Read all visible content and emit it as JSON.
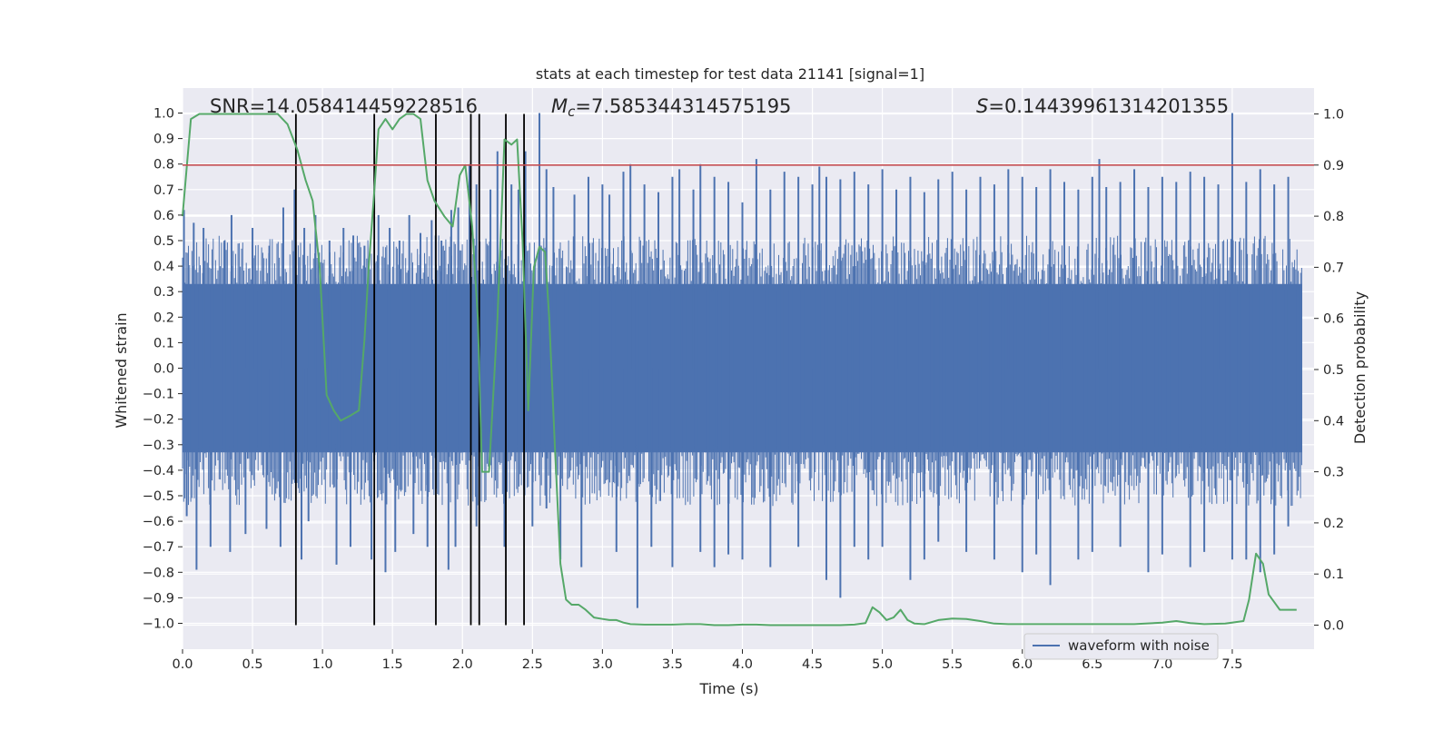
{
  "chart_data": {
    "type": "line",
    "title": "stats at each timestep for test data 21141 [signal=1]",
    "xlabel": "Time (s)",
    "ylabel": "Whitened strain",
    "y2label": "Detection probability",
    "xlim": [
      0.0,
      8.0
    ],
    "ylim": [
      -1.05,
      1.05
    ],
    "y2lim": [
      -0.025,
      1.035
    ],
    "x_ticks": [
      0.0,
      0.5,
      1.0,
      1.5,
      2.0,
      2.5,
      3.0,
      3.5,
      4.0,
      4.5,
      5.0,
      5.5,
      6.0,
      6.5,
      7.0,
      7.5
    ],
    "x_tick_labels": [
      "0.0",
      "0.5",
      "1.0",
      "1.5",
      "2.0",
      "2.5",
      "3.0",
      "3.5",
      "4.0",
      "4.5",
      "5.0",
      "5.5",
      "6.0",
      "6.5",
      "7.0",
      "7.5"
    ],
    "y_ticks": [
      -1.0,
      -0.9,
      -0.8,
      -0.7,
      -0.6,
      -0.5,
      -0.4,
      -0.3,
      -0.2,
      -0.1,
      0.0,
      0.1,
      0.2,
      0.3,
      0.4,
      0.5,
      0.6,
      0.7,
      0.8,
      0.9,
      1.0
    ],
    "y_tick_labels": [
      "−1.0",
      "−0.9",
      "−0.8",
      "−0.7",
      "−0.6",
      "−0.5",
      "−0.4",
      "−0.3",
      "−0.2",
      "−0.1",
      "0.0",
      "0.1",
      "0.2",
      "0.3",
      "0.4",
      "0.5",
      "0.6",
      "0.7",
      "0.8",
      "0.9",
      "1.0"
    ],
    "y2_ticks": [
      0.0,
      0.1,
      0.2,
      0.3,
      0.4,
      0.5,
      0.6,
      0.7,
      0.8,
      0.9,
      1.0
    ],
    "y2_tick_labels": [
      "0.0",
      "0.1",
      "0.2",
      "0.3",
      "0.4",
      "0.5",
      "0.6",
      "0.7",
      "0.8",
      "0.9",
      "1.0"
    ],
    "annotations": {
      "snr": "SNR=14.058414459228516",
      "mc_symbol": "M",
      "mc_sub": "c",
      "mc_value": "=7.585344314575195",
      "s_symbol": "S",
      "s_value": "=0.14439961314201355"
    },
    "legend": {
      "label": "waveform with noise",
      "location": "lower-right-center"
    },
    "colors": {
      "waveform": "#4c72b0",
      "probability": "#55a868",
      "threshold": "#c44e52",
      "vlines": "#000000",
      "background": "#eaeaf2",
      "grid": "#ffffff"
    },
    "waveform": {
      "name": "waveform with noise",
      "band_upper": 0.33,
      "band_lower": -0.33,
      "peaks_x": [
        0.01,
        0.08,
        0.15,
        0.3,
        0.35,
        0.5,
        0.62,
        0.72,
        0.8,
        0.87,
        0.95,
        1.05,
        1.15,
        1.22,
        1.3,
        1.4,
        1.48,
        1.55,
        1.62,
        1.7,
        1.78,
        1.85,
        1.92,
        1.97,
        2.05,
        2.1,
        2.2,
        2.25,
        2.35,
        2.4,
        2.45,
        2.55,
        2.6,
        2.65,
        2.8,
        2.9,
        3.0,
        3.05,
        3.15,
        3.2,
        3.3,
        3.4,
        3.5,
        3.55,
        3.65,
        3.7,
        3.8,
        3.9,
        4.0,
        4.1,
        4.2,
        4.3,
        4.4,
        4.5,
        4.55,
        4.6,
        4.7,
        4.8,
        4.9,
        5.0,
        5.1,
        5.2,
        5.3,
        5.4,
        5.5,
        5.6,
        5.7,
        5.8,
        5.9,
        6.0,
        6.1,
        6.2,
        6.3,
        6.4,
        6.5,
        6.55,
        6.6,
        6.7,
        6.8,
        6.9,
        7.0,
        7.1,
        7.2,
        7.3,
        7.4,
        7.5,
        7.6,
        7.7,
        7.8,
        7.9
      ],
      "peaks_y": [
        0.62,
        0.57,
        0.55,
        0.5,
        0.6,
        0.55,
        0.48,
        0.63,
        0.7,
        0.55,
        0.6,
        0.5,
        0.55,
        0.52,
        0.48,
        0.6,
        0.55,
        0.5,
        0.6,
        0.53,
        0.58,
        0.5,
        0.62,
        0.63,
        0.8,
        0.72,
        0.7,
        0.85,
        0.72,
        0.7,
        0.85,
        1.0,
        0.78,
        0.71,
        0.68,
        0.75,
        0.72,
        0.68,
        0.77,
        0.8,
        0.72,
        0.69,
        0.75,
        0.78,
        0.7,
        0.8,
        0.75,
        0.73,
        0.65,
        0.82,
        0.7,
        0.77,
        0.75,
        0.72,
        0.79,
        0.75,
        0.74,
        0.77,
        0.72,
        0.78,
        0.7,
        0.75,
        0.69,
        0.74,
        0.77,
        0.7,
        0.75,
        0.72,
        0.78,
        0.75,
        0.71,
        0.78,
        0.73,
        0.7,
        0.75,
        0.82,
        0.71,
        0.73,
        0.78,
        0.71,
        0.75,
        0.73,
        0.77,
        0.75,
        0.72,
        1.0,
        0.73,
        0.78,
        0.72,
        0.75
      ],
      "troughs_x": [
        0.03,
        0.1,
        0.2,
        0.34,
        0.45,
        0.6,
        0.7,
        0.85,
        0.9,
        1.1,
        1.2,
        1.35,
        1.45,
        1.52,
        1.65,
        1.75,
        1.9,
        1.95,
        2.1,
        2.3,
        2.5,
        2.6,
        2.7,
        2.85,
        3.1,
        3.25,
        3.35,
        3.5,
        3.7,
        3.8,
        3.9,
        4.0,
        4.2,
        4.4,
        4.6,
        4.7,
        4.8,
        4.9,
        5.0,
        5.2,
        5.3,
        5.4,
        5.6,
        5.8,
        6.0,
        6.1,
        6.2,
        6.4,
        6.5,
        6.7,
        6.9,
        7.0,
        7.2,
        7.3,
        7.5,
        7.6,
        7.7,
        7.8,
        7.9
      ],
      "troughs_y": [
        -0.58,
        -0.79,
        -0.7,
        -0.72,
        -0.65,
        -0.63,
        -0.7,
        -0.75,
        -0.6,
        -0.77,
        -0.7,
        -0.75,
        -0.8,
        -0.72,
        -0.65,
        -0.7,
        -0.79,
        -0.7,
        -0.62,
        -0.7,
        -0.62,
        -0.55,
        -0.75,
        -0.78,
        -0.72,
        -0.94,
        -0.7,
        -0.78,
        -0.72,
        -0.78,
        -0.73,
        -0.75,
        -0.78,
        -0.7,
        -0.83,
        -0.9,
        -0.7,
        -0.75,
        -0.7,
        -0.83,
        -0.75,
        -0.68,
        -0.72,
        -0.75,
        -0.8,
        -0.73,
        -0.85,
        -0.75,
        -0.72,
        -0.7,
        -0.8,
        -0.73,
        -0.78,
        -0.72,
        -0.75,
        -0.75,
        -0.8,
        -0.73,
        -0.62
      ]
    },
    "probability": {
      "name": "detection probability",
      "x": [
        0.0,
        0.06,
        0.12,
        0.2,
        0.3,
        0.4,
        0.5,
        0.6,
        0.68,
        0.75,
        0.82,
        0.88,
        0.93,
        0.98,
        1.03,
        1.08,
        1.13,
        1.2,
        1.26,
        1.3,
        1.33,
        1.37,
        1.4,
        1.45,
        1.5,
        1.55,
        1.6,
        1.65,
        1.7,
        1.75,
        1.8,
        1.87,
        1.93,
        1.98,
        2.02,
        2.07,
        2.11,
        2.14,
        2.19,
        2.25,
        2.3,
        2.35,
        2.39,
        2.43,
        2.47,
        2.51,
        2.55,
        2.59,
        2.62,
        2.66,
        2.7,
        2.74,
        2.78,
        2.83,
        2.88,
        2.94,
        3.0,
        3.05,
        3.1,
        3.15,
        3.2,
        3.3,
        3.4,
        3.5,
        3.6,
        3.7,
        3.8,
        3.9,
        4.0,
        4.1,
        4.2,
        4.3,
        4.4,
        4.5,
        4.6,
        4.7,
        4.8,
        4.88,
        4.93,
        4.98,
        5.03,
        5.08,
        5.13,
        5.18,
        5.23,
        5.3,
        5.4,
        5.5,
        5.6,
        5.7,
        5.8,
        5.9,
        6.0,
        6.2,
        6.4,
        6.6,
        6.8,
        7.0,
        7.1,
        7.2,
        7.3,
        7.45,
        7.58,
        7.62,
        7.67,
        7.72,
        7.76,
        7.8,
        7.84,
        7.88,
        7.92,
        7.96
      ],
      "y": [
        0.8,
        0.99,
        1.0,
        1.0,
        1.0,
        1.0,
        1.0,
        1.0,
        1.0,
        0.98,
        0.93,
        0.87,
        0.83,
        0.7,
        0.45,
        0.42,
        0.4,
        0.41,
        0.42,
        0.56,
        0.7,
        0.85,
        0.97,
        0.99,
        0.97,
        0.99,
        1.0,
        1.0,
        0.99,
        0.87,
        0.83,
        0.8,
        0.78,
        0.88,
        0.9,
        0.78,
        0.6,
        0.3,
        0.3,
        0.6,
        0.95,
        0.94,
        0.95,
        0.75,
        0.42,
        0.7,
        0.74,
        0.73,
        0.6,
        0.35,
        0.12,
        0.05,
        0.04,
        0.04,
        0.03,
        0.015,
        0.012,
        0.01,
        0.01,
        0.005,
        0.002,
        0.001,
        0.001,
        0.001,
        0.002,
        0.002,
        0.0,
        0.0,
        0.001,
        0.001,
        0.0,
        0.0,
        0.0,
        0.0,
        0.0,
        0.0,
        0.001,
        0.004,
        0.035,
        0.025,
        0.01,
        0.015,
        0.03,
        0.01,
        0.003,
        0.002,
        0.01,
        0.013,
        0.012,
        0.008,
        0.003,
        0.002,
        0.002,
        0.002,
        0.002,
        0.002,
        0.002,
        0.005,
        0.008,
        0.004,
        0.002,
        0.003,
        0.008,
        0.05,
        0.14,
        0.12,
        0.06,
        0.045,
        0.03,
        0.03,
        0.03,
        0.03
      ],
      "line_end_x": 7.96
    },
    "threshold": {
      "value": 0.9
    },
    "event_lines_x": [
      0.81,
      1.37,
      1.81,
      2.06,
      2.12,
      2.31,
      2.44
    ],
    "event_lines_y2_range": [
      0.0,
      1.0
    ]
  }
}
